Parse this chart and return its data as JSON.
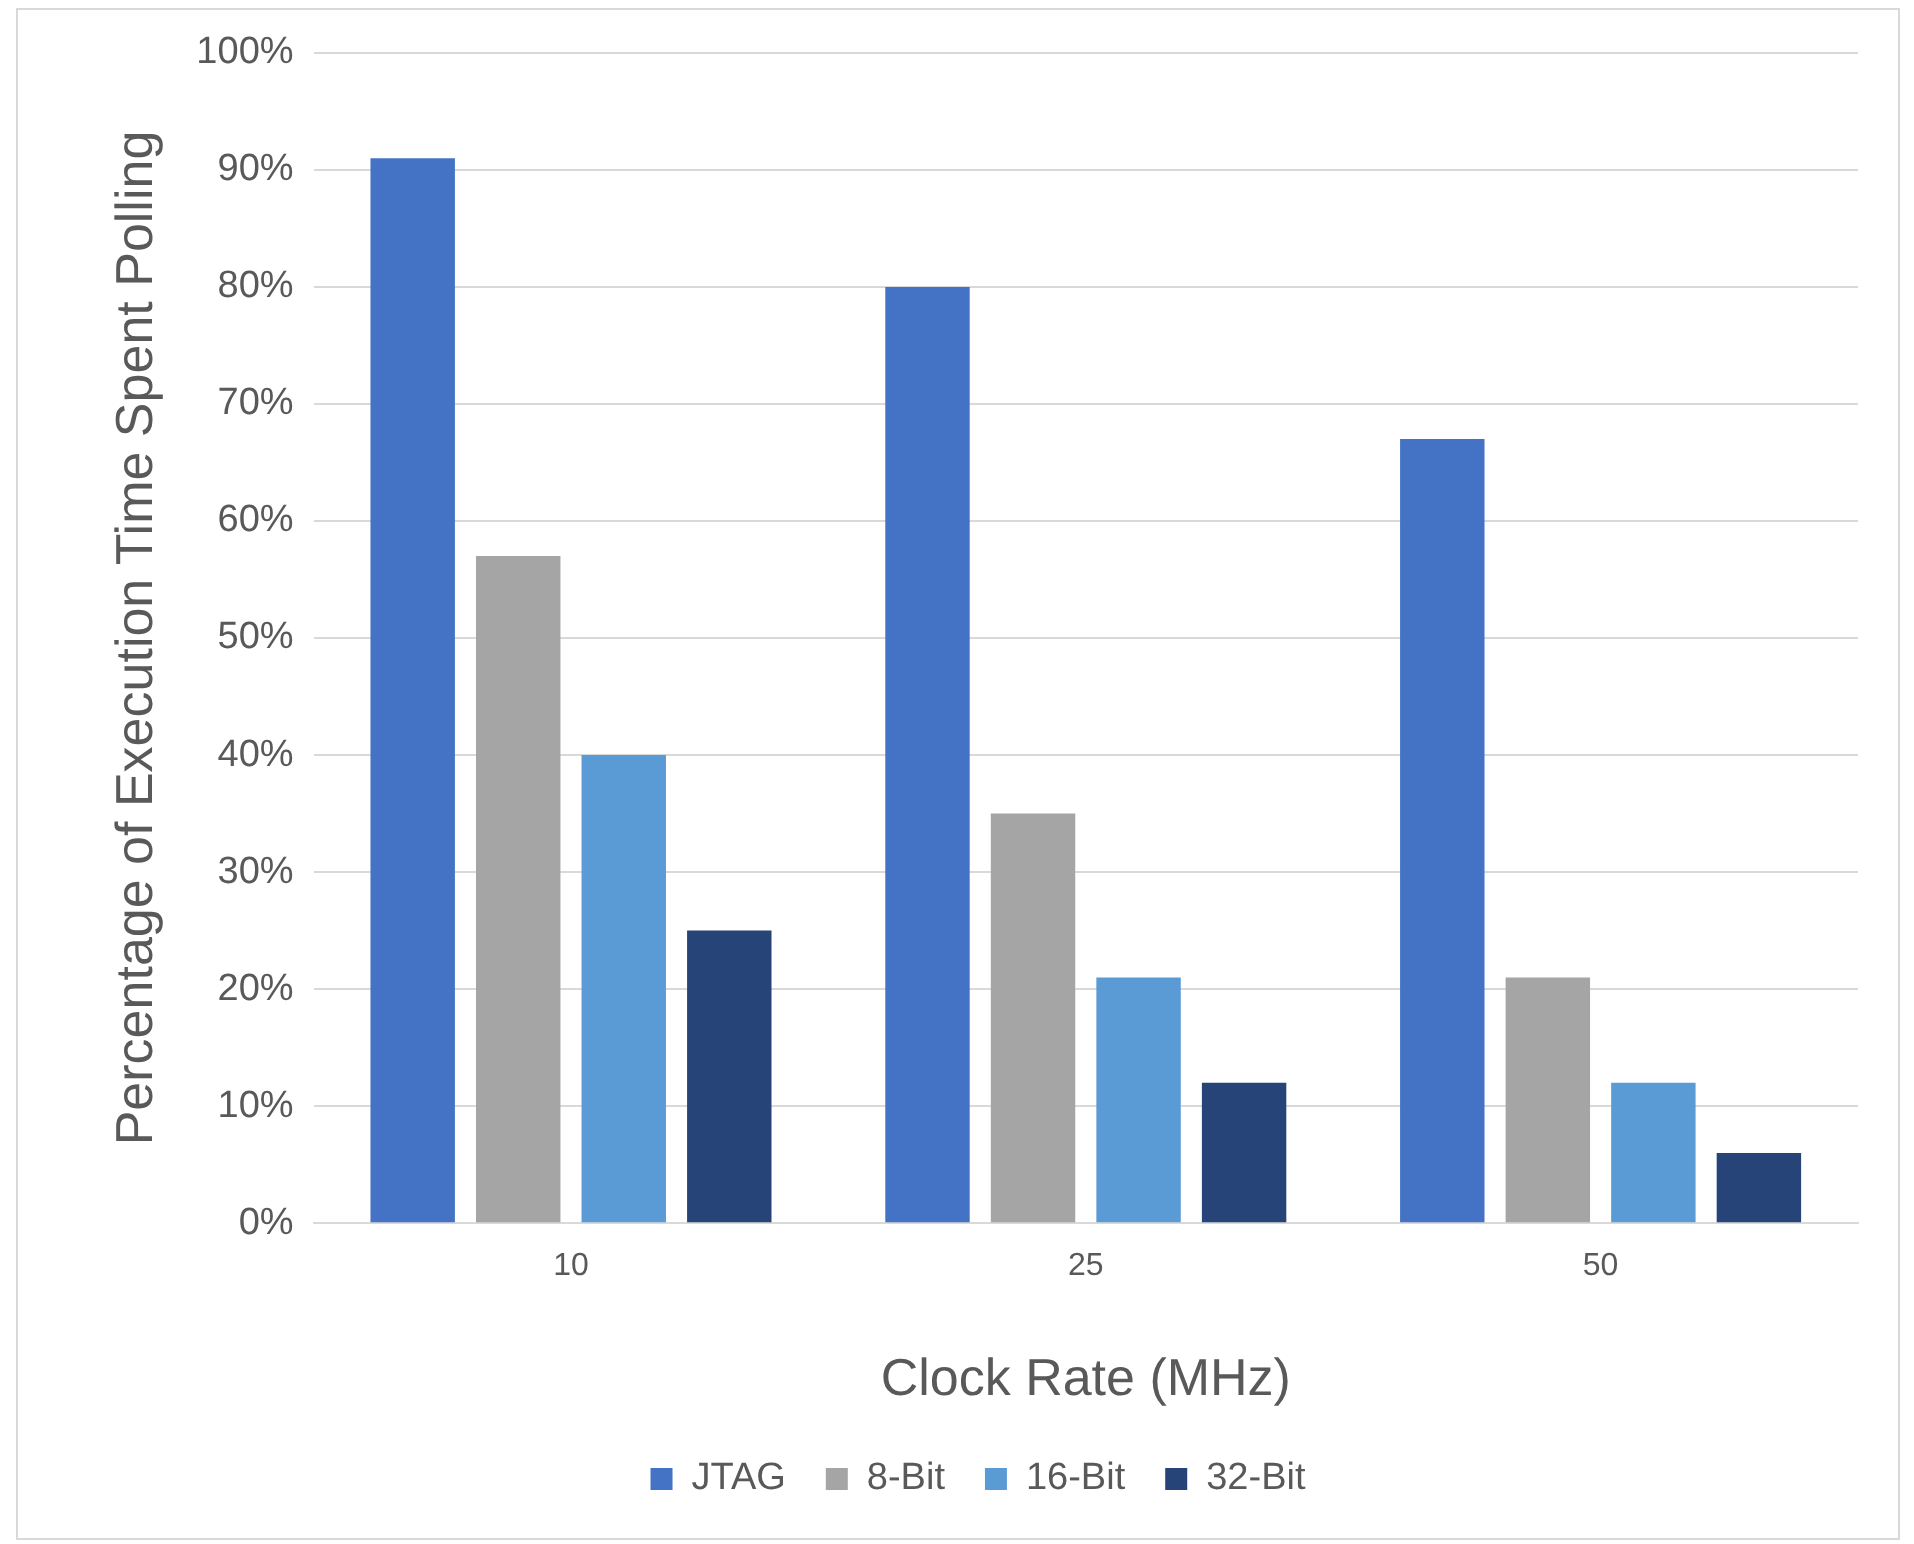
{
  "chart_data": {
    "type": "bar",
    "xlabel": "Clock Rate (MHz)",
    "ylabel": "Percentage of Execution Time Spent Polling",
    "categories": [
      "10",
      "25",
      "50"
    ],
    "series": [
      {
        "name": "JTAG",
        "color": "#4472c4",
        "values": [
          91,
          80,
          67
        ]
      },
      {
        "name": "8-Bit",
        "color": "#a5a5a5",
        "values": [
          57,
          35,
          21
        ]
      },
      {
        "name": "16-Bit",
        "color": "#5b9bd5",
        "values": [
          40,
          21,
          12
        ]
      },
      {
        "name": "32-Bit",
        "color": "#264478",
        "values": [
          25,
          12,
          6
        ]
      }
    ],
    "ylim": [
      0,
      100
    ],
    "yticks": [
      {
        "value": 0,
        "label": "0%"
      },
      {
        "value": 10,
        "label": "10%"
      },
      {
        "value": 20,
        "label": "20%"
      },
      {
        "value": 30,
        "label": "30%"
      },
      {
        "value": 40,
        "label": "40%"
      },
      {
        "value": 50,
        "label": "50%"
      },
      {
        "value": 60,
        "label": "60%"
      },
      {
        "value": 70,
        "label": "70%"
      },
      {
        "value": 80,
        "label": "80%"
      },
      {
        "value": 90,
        "label": "90%"
      },
      {
        "value": 100,
        "label": "100%"
      }
    ],
    "grid": "y",
    "legend": "bottom"
  }
}
